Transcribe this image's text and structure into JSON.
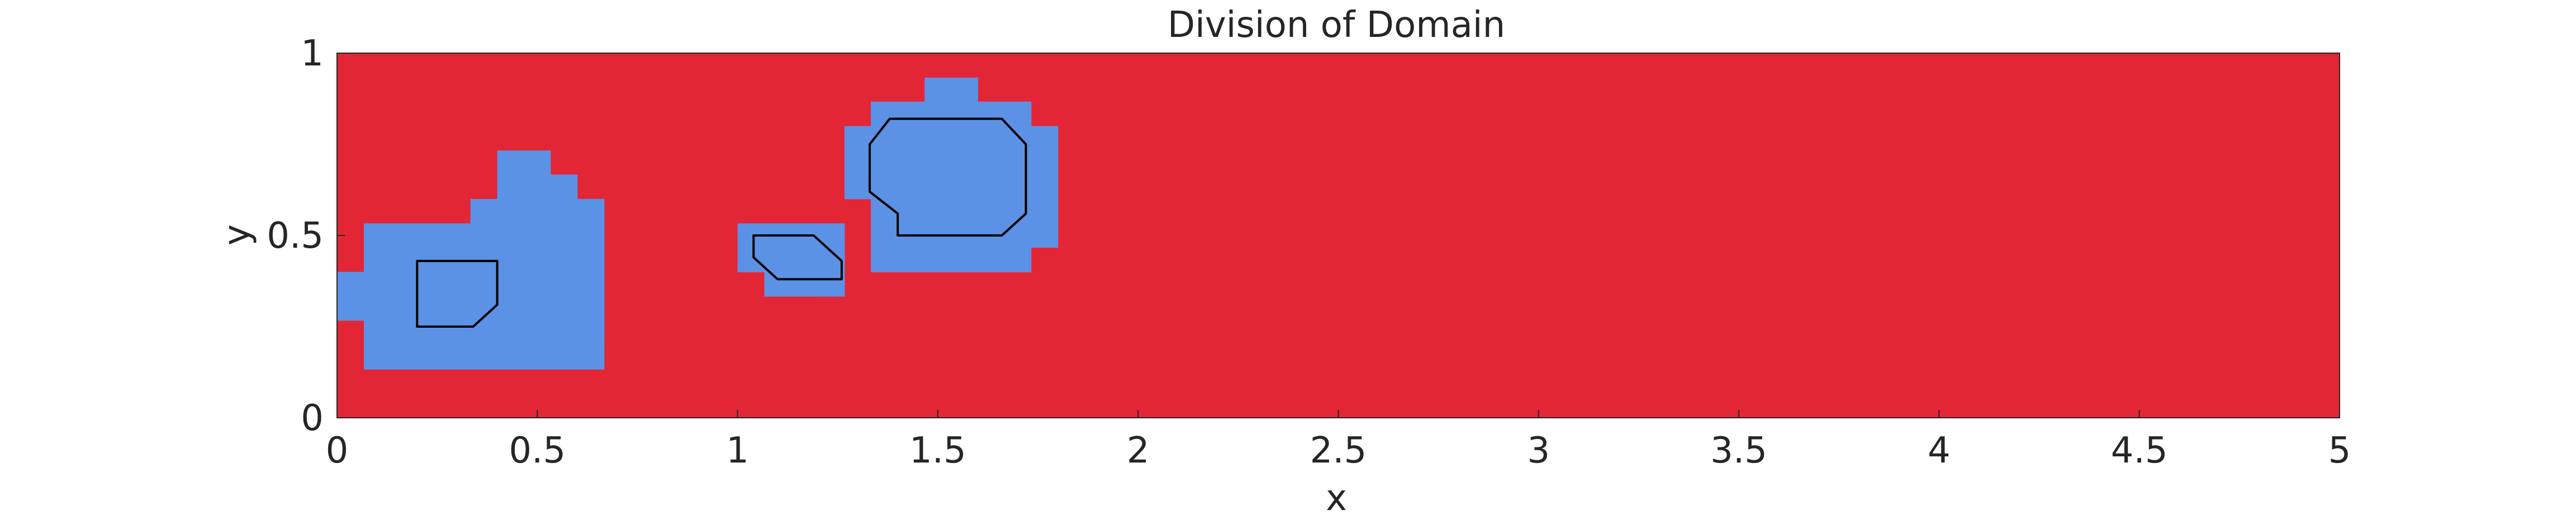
{
  "chart_data": {
    "type": "heatmap",
    "title": "Division of Domain",
    "xlabel": "x",
    "ylabel": "y",
    "xlim": [
      0,
      5
    ],
    "ylim": [
      0,
      1
    ],
    "x_ticks": [
      0,
      0.5,
      1,
      1.5,
      2,
      2.5,
      3,
      3.5,
      4,
      4.5,
      5
    ],
    "x_tick_labels": [
      "0",
      "0.5",
      "1",
      "1.5",
      "2",
      "2.5",
      "3",
      "3.5",
      "4",
      "4.5",
      "5"
    ],
    "y_ticks": [
      0,
      0.5,
      1
    ],
    "y_tick_labels": [
      "0",
      "0.5",
      "1"
    ],
    "grid": false,
    "colors": {
      "background_region": "#e32636",
      "subdomain_region": "#5b92e5",
      "outline": "#000000"
    },
    "subdomain_cells": [
      [
        0.0,
        0.267,
        0.067,
        0.4
      ],
      [
        0.067,
        0.133,
        0.333,
        0.533
      ],
      [
        0.333,
        0.133,
        0.667,
        0.2
      ],
      [
        0.333,
        0.2,
        0.667,
        0.6
      ],
      [
        0.4,
        0.6,
        0.6,
        0.667
      ],
      [
        0.6,
        0.2,
        0.667,
        0.6
      ],
      [
        0.4,
        0.667,
        0.533,
        0.733
      ],
      [
        1.0,
        0.4,
        1.067,
        0.533
      ],
      [
        1.067,
        0.333,
        1.267,
        0.533
      ],
      [
        1.267,
        0.333,
        1.2667,
        0.467
      ],
      [
        1.2,
        0.333,
        1.267,
        0.467
      ],
      [
        1.267,
        0.6,
        1.333,
        0.8
      ],
      [
        1.333,
        0.4,
        1.733,
        0.867
      ],
      [
        1.733,
        0.467,
        1.8,
        0.8
      ],
      [
        1.467,
        0.867,
        1.6,
        0.933
      ],
      [
        1.333,
        0.8,
        1.733,
        0.867
      ]
    ],
    "outlines": [
      [
        [
          0.2,
          0.43
        ],
        [
          0.4,
          0.43
        ],
        [
          0.4,
          0.31
        ],
        [
          0.34,
          0.25
        ],
        [
          0.2,
          0.25
        ]
      ],
      [
        [
          1.06,
          0.5
        ],
        [
          1.19,
          0.5
        ],
        [
          1.26,
          0.43
        ],
        [
          1.26,
          0.38
        ],
        [
          1.1,
          0.38
        ],
        [
          1.04,
          0.44
        ],
        [
          1.04,
          0.5
        ]
      ],
      [
        [
          1.38,
          0.82
        ],
        [
          1.66,
          0.82
        ],
        [
          1.72,
          0.75
        ],
        [
          1.72,
          0.56
        ],
        [
          1.66,
          0.5
        ],
        [
          1.4,
          0.5
        ],
        [
          1.4,
          0.56
        ],
        [
          1.33,
          0.62
        ],
        [
          1.33,
          0.75
        ]
      ]
    ]
  }
}
